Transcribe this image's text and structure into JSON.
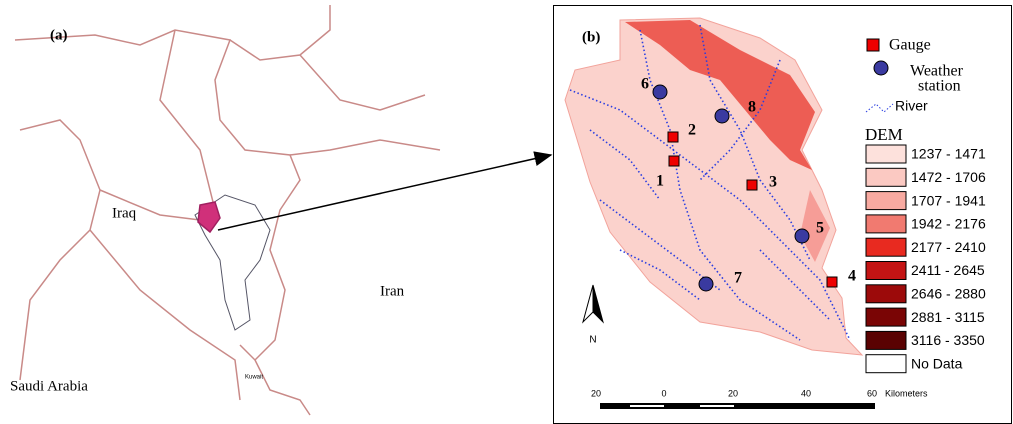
{
  "panel_a": {
    "label": "(a)",
    "countries": [
      "Iraq",
      "Iran",
      "Saudi Arabia",
      "Kuwait"
    ]
  },
  "panel_b": {
    "label": "(b)",
    "gauges": [
      "1",
      "2",
      "3",
      "4"
    ],
    "weather_stations": [
      "5",
      "6",
      "7",
      "8"
    ],
    "legend": {
      "gauge": "Gauge",
      "weather_station": [
        "Weather",
        "station"
      ],
      "river": "River"
    },
    "dem": {
      "title": "DEM",
      "classes": [
        {
          "label": "1237 - 1471",
          "color": "#fde1dc"
        },
        {
          "label": "1472 - 1706",
          "color": "#fbc9c2"
        },
        {
          "label": "1707 - 1941",
          "color": "#f8aaa1"
        },
        {
          "label": "1942 - 2176",
          "color": "#f17a70"
        },
        {
          "label": "2177 - 2410",
          "color": "#e82a20"
        },
        {
          "label": "2411 - 2645",
          "color": "#c41414"
        },
        {
          "label": "2646 - 2880",
          "color": "#9c0a0a"
        },
        {
          "label": "2881 - 3115",
          "color": "#7a0505"
        },
        {
          "label": "3116 - 3350",
          "color": "#5a0202"
        },
        {
          "label": "No Data",
          "color": "#ffffff"
        }
      ]
    },
    "north": "N",
    "scale": {
      "ticks": [
        "20",
        "0",
        "20",
        "40",
        "60"
      ],
      "unit": "Kilometers"
    }
  }
}
